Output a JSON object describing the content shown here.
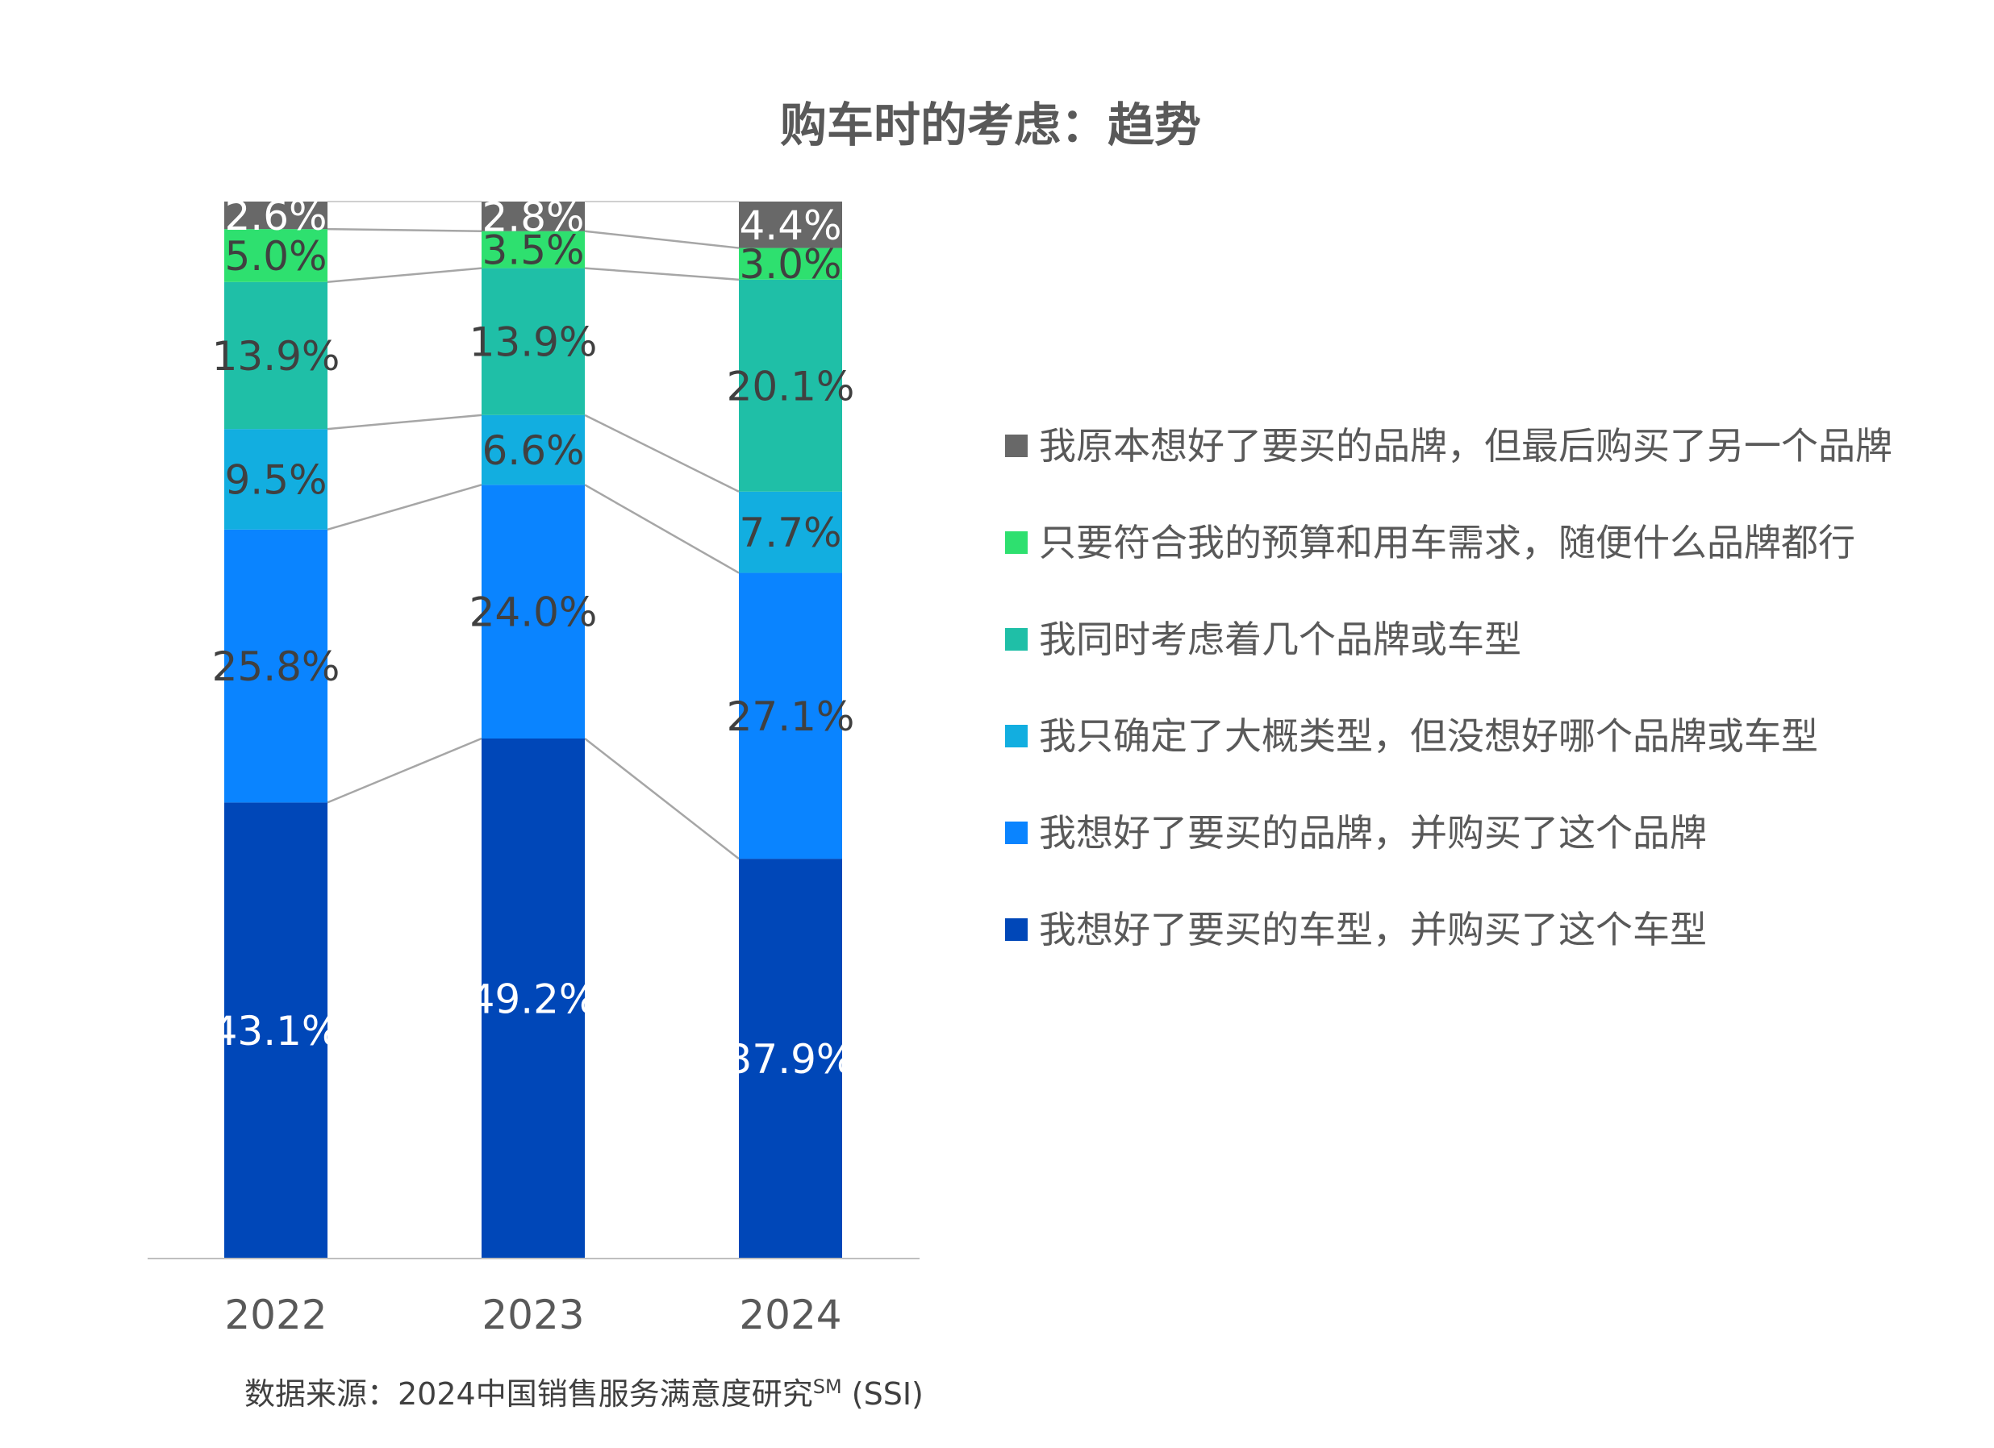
{
  "chart_data": {
    "type": "bar",
    "stacked": true,
    "percent_stacked": true,
    "title": "购车时的考虑：趋势",
    "categories": [
      "2022",
      "2023",
      "2024"
    ],
    "series": [
      {
        "name": "我想好了要买的车型，并购买了这个车型",
        "color": "#0047b8",
        "label_color": "#ffffff",
        "values": [
          43.1,
          49.2,
          37.9
        ],
        "labels": [
          "43.1%",
          "49.2%",
          "37.9%"
        ]
      },
      {
        "name": "我想好了要买的品牌，并购买了这个品牌",
        "color": "#0a84ff",
        "label_color": "#404040",
        "values": [
          25.8,
          24.0,
          27.1
        ],
        "labels": [
          "25.8%",
          "24.0%",
          "27.1%"
        ]
      },
      {
        "name": "我只确定了大概类型，但没想好哪个品牌或车型",
        "color": "#12aee0",
        "label_color": "#404040",
        "values": [
          9.5,
          6.6,
          7.7
        ],
        "labels": [
          "9.5%",
          "6.6%",
          "7.7%"
        ]
      },
      {
        "name": "我同时考虑着几个品牌或车型",
        "color": "#1fbfa7",
        "label_color": "#404040",
        "values": [
          13.9,
          13.9,
          20.1
        ],
        "labels": [
          "13.9%",
          "13.9%",
          "20.1%"
        ]
      },
      {
        "name": "只要符合我的预算和用车需求，随便什么品牌都行",
        "color": "#2ee06f",
        "label_color": "#404040",
        "values": [
          5.0,
          3.5,
          3.0
        ],
        "labels": [
          "5.0%",
          "3.5%",
          "3.0%"
        ]
      },
      {
        "name": "我原本想好了要买的品牌，但最后购买了另一个品牌",
        "color": "#686868",
        "label_color": "#ffffff",
        "values": [
          2.6,
          2.8,
          4.4
        ],
        "labels": [
          "2.6%",
          "2.8%",
          "4.4%"
        ]
      }
    ],
    "legend_order": [
      5,
      4,
      3,
      2,
      1,
      0
    ],
    "legend_position": "right",
    "connector_lines": true,
    "grid": false,
    "ylim": [
      0,
      100
    ]
  },
  "source": {
    "prefix": "数据来源：2024中国销售服务满意度研究",
    "superscript": "SM",
    "suffix": " (SSI)"
  }
}
